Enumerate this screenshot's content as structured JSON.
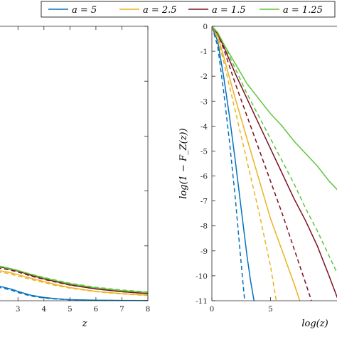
{
  "chart_data": [
    {
      "type": "line",
      "xlabel": "z",
      "ylabel": "",
      "xlim": [
        2.2,
        8
      ],
      "ylim": [
        0,
        1
      ],
      "x_ticks": [
        "3",
        "4",
        "5",
        "6",
        "7",
        "8"
      ],
      "series": [
        {
          "name": "a = 5",
          "color": "#0072BD",
          "style": "solid",
          "x": [
            2.2,
            2.5,
            2.8,
            3,
            3.5,
            4,
            4.5,
            5,
            6,
            7,
            8
          ],
          "y": [
            0.055,
            0.048,
            0.041,
            0.034,
            0.02,
            0.012,
            0.007,
            0.004,
            0.002,
            0.001,
            0.0005
          ]
        },
        {
          "name": "a = 5",
          "color": "#0072BD",
          "style": "dashed",
          "x": [
            2.2,
            2.5,
            2.8,
            3,
            3.5,
            4,
            4.5,
            5,
            6,
            7,
            8
          ],
          "y": [
            0.05,
            0.044,
            0.037,
            0.03,
            0.017,
            0.01,
            0.006,
            0.003,
            0.0015,
            0.0008,
            0.0004
          ]
        },
        {
          "name": "a = 2.5",
          "color": "#EDB120",
          "style": "solid",
          "x": [
            2.2,
            2.6,
            3,
            3.5,
            4,
            4.5,
            5,
            6,
            7,
            8
          ],
          "y": [
            0.11,
            0.105,
            0.095,
            0.082,
            0.07,
            0.058,
            0.048,
            0.034,
            0.026,
            0.02
          ]
        },
        {
          "name": "a = 2.5",
          "color": "#EDB120",
          "style": "dashed",
          "x": [
            2.2,
            2.6,
            3,
            3.5,
            4,
            4.5,
            5,
            6,
            7,
            8
          ],
          "y": [
            0.105,
            0.1,
            0.09,
            0.078,
            0.066,
            0.055,
            0.046,
            0.033,
            0.025,
            0.019
          ]
        },
        {
          "name": "a = 1.5",
          "color": "#7E1020",
          "style": "solid",
          "x": [
            2.2,
            2.6,
            3,
            3.5,
            4,
            4.5,
            5,
            6,
            7,
            8
          ],
          "y": [
            0.125,
            0.118,
            0.108,
            0.093,
            0.08,
            0.069,
            0.058,
            0.043,
            0.033,
            0.026
          ]
        },
        {
          "name": "a = 1.5",
          "color": "#7E1020",
          "style": "dashed",
          "x": [
            2.2,
            2.6,
            3,
            3.5,
            4,
            4.5,
            5,
            6,
            7,
            8
          ],
          "y": [
            0.12,
            0.114,
            0.105,
            0.09,
            0.078,
            0.067,
            0.057,
            0.043,
            0.033,
            0.026
          ]
        },
        {
          "name": "a = 1.25",
          "color": "#5DC63A",
          "style": "solid",
          "x": [
            2.2,
            2.6,
            3,
            3.5,
            4,
            4.5,
            5,
            6,
            7,
            8
          ],
          "y": [
            0.128,
            0.12,
            0.11,
            0.096,
            0.083,
            0.072,
            0.062,
            0.047,
            0.037,
            0.03
          ]
        },
        {
          "name": "a = 1.25",
          "color": "#5DC63A",
          "style": "dashed",
          "x": [
            2.2,
            2.6,
            3,
            3.5,
            4,
            4.5,
            5,
            6,
            7,
            8
          ],
          "y": [
            0.126,
            0.119,
            0.11,
            0.097,
            0.085,
            0.074,
            0.064,
            0.049,
            0.039,
            0.032
          ]
        }
      ]
    },
    {
      "type": "line",
      "xlabel": "log(z)",
      "ylabel": "log(1 − F_Z(z))",
      "xlim": [
        0,
        10.8
      ],
      "ylim": [
        -11,
        0
      ],
      "x_ticks": [
        "0",
        "5"
      ],
      "y_ticks": [
        "0",
        "-1",
        "-2",
        "-3",
        "-4",
        "-5",
        "-6",
        "-7",
        "-8",
        "-9",
        "-10",
        "-11"
      ],
      "series": [
        {
          "name": "a = 5",
          "color": "#0072BD",
          "style": "solid",
          "x": [
            0,
            0.5,
            1,
            1.5,
            2,
            2.5,
            3,
            3.3,
            3.6
          ],
          "y": [
            0,
            -0.6,
            -2.0,
            -3.6,
            -5.4,
            -7.3,
            -9.2,
            -10.2,
            -11
          ]
        },
        {
          "name": "a = 5",
          "color": "#0072BD",
          "style": "dashed",
          "x": [
            0,
            0.5,
            1,
            1.5,
            2,
            2.5,
            2.8
          ],
          "y": [
            0,
            -0.8,
            -2.6,
            -4.6,
            -6.9,
            -9.5,
            -11
          ]
        },
        {
          "name": "a = 2.5",
          "color": "#EDB120",
          "style": "solid",
          "x": [
            0,
            0.5,
            1,
            2,
            3,
            4,
            5,
            6,
            7,
            7.5
          ],
          "y": [
            0,
            -0.4,
            -1.2,
            -2.9,
            -4.5,
            -6.1,
            -7.7,
            -9.0,
            -10.3,
            -11
          ]
        },
        {
          "name": "a = 2.5",
          "color": "#EDB120",
          "style": "dashed",
          "x": [
            0,
            0.5,
            1,
            2,
            3,
            4,
            5,
            5.5
          ],
          "y": [
            0,
            -0.5,
            -1.4,
            -3.4,
            -5.4,
            -7.4,
            -9.6,
            -11
          ]
        },
        {
          "name": "a = 1.5",
          "color": "#7E1020",
          "style": "solid",
          "x": [
            0,
            0.5,
            1,
            2,
            3,
            4,
            5,
            6,
            7,
            8,
            9,
            10,
            10.8
          ],
          "y": [
            0,
            -0.3,
            -0.8,
            -1.9,
            -2.9,
            -3.9,
            -4.9,
            -5.9,
            -6.9,
            -7.8,
            -8.8,
            -10.0,
            -11
          ]
        },
        {
          "name": "a = 1.5",
          "color": "#7E1020",
          "style": "dashed",
          "x": [
            0,
            0.5,
            1,
            2,
            3,
            4,
            5,
            6,
            7,
            8,
            8.5
          ],
          "y": [
            0,
            -0.3,
            -0.9,
            -2.3,
            -3.6,
            -4.9,
            -6.2,
            -7.5,
            -8.9,
            -10.3,
            -11
          ]
        },
        {
          "name": "a = 1.25",
          "color": "#5DC63A",
          "style": "solid",
          "x": [
            0,
            0.5,
            1,
            2,
            3,
            4,
            5,
            6,
            7,
            8,
            9,
            10,
            10.8
          ],
          "y": [
            0,
            -0.25,
            -0.7,
            -1.5,
            -2.3,
            -2.9,
            -3.5,
            -4.0,
            -4.6,
            -5.1,
            -5.6,
            -6.2,
            -6.6
          ]
        },
        {
          "name": "a = 1.25",
          "color": "#5DC63A",
          "style": "dashed",
          "x": [
            0,
            0.5,
            1,
            2,
            3,
            4,
            5,
            6,
            7,
            8,
            9,
            10,
            10.8
          ],
          "y": [
            0,
            -0.25,
            -0.7,
            -1.7,
            -2.7,
            -3.6,
            -4.5,
            -5.4,
            -6.3,
            -7.3,
            -8.2,
            -9.2,
            -10.0
          ]
        }
      ]
    }
  ],
  "legend": {
    "entries": [
      {
        "label": "a = 5",
        "color": "#0072BD"
      },
      {
        "label": "a = 2.5",
        "color": "#EDB120"
      },
      {
        "label": "a = 1.5",
        "color": "#7E1020"
      },
      {
        "label": "a = 1.25",
        "color": "#5DC63A"
      }
    ]
  }
}
